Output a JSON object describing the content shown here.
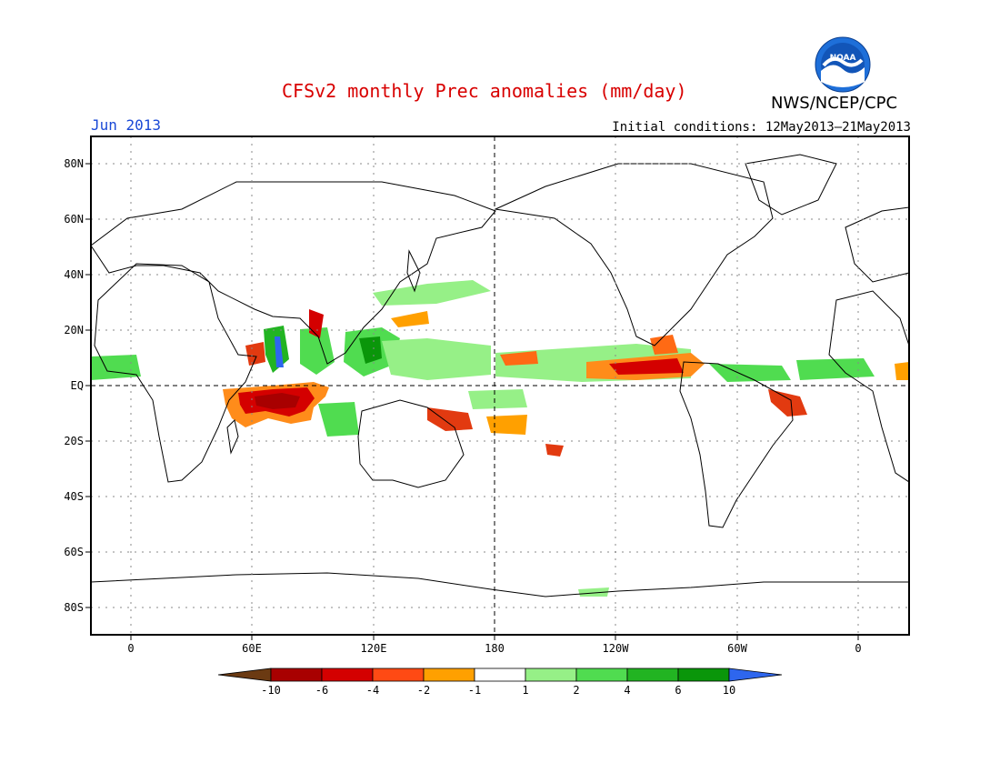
{
  "header": {
    "title": "CFSv2 monthly Prec anomalies (mm/day)",
    "agency": "NWS/NCEP/CPC",
    "month": "Jun 2013",
    "initial_conditions": "Initial conditions: 12May2013–21May2013",
    "logo_text": "NOAA"
  },
  "map": {
    "lat_labels": [
      "80N",
      "60N",
      "40N",
      "20N",
      "EQ",
      "20S",
      "40S",
      "60S",
      "80S"
    ],
    "lon_labels": [
      "0",
      "60E",
      "120E",
      "180",
      "120W",
      "60W",
      "0"
    ],
    "grid": true
  },
  "colorbar": {
    "labels": [
      "-10",
      "-6",
      "-4",
      "-2",
      "-1",
      "1",
      "2",
      "4",
      "6",
      "10"
    ],
    "colors": [
      "#6b3a12",
      "#a80000",
      "#d40000",
      "#ff4a14",
      "#ffa000",
      "#ffffff",
      "#96f087",
      "#50dc50",
      "#22b422",
      "#0a960a",
      "#2e66ee"
    ]
  },
  "colors": {
    "title": "#d80000",
    "month": "#1a49d6",
    "noaa_blue": "#1e6fd9"
  }
}
